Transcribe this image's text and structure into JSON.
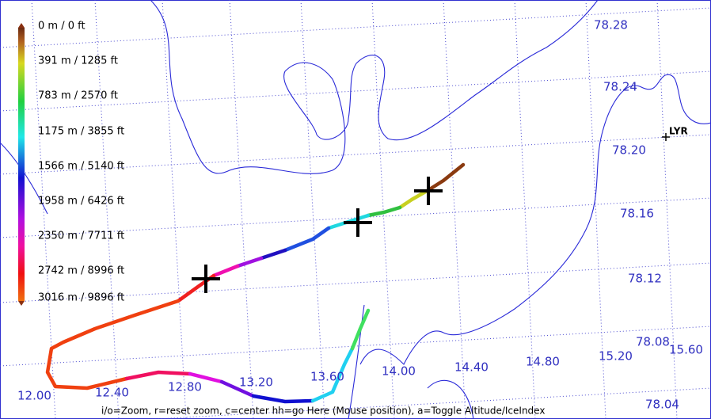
{
  "legend": {
    "labels": [
      "0 m / 0 ft",
      "391 m / 1285 ft",
      "783 m / 2570 ft",
      "1175 m / 3855 ft",
      "1566 m / 5140 ft",
      "1958 m / 6426 ft",
      "2350 m / 7711 ft",
      "2742 m / 8996 ft",
      "3016 m / 9896 ft"
    ]
  },
  "latitudes": [
    "78.28",
    "78.24",
    "78.20",
    "78.16",
    "78.12",
    "78.08",
    "78.04"
  ],
  "longitudes": [
    "12.00",
    "12.40",
    "12.80",
    "13.20",
    "13.60",
    "14.00",
    "14.40",
    "14.80",
    "15.20",
    "15.60"
  ],
  "airport": "LYR",
  "help": "i/o=Zoom, r=reset zoom, c=center hh=go Here (Mouse position), a=Toggle Altitude/IceIndex"
}
